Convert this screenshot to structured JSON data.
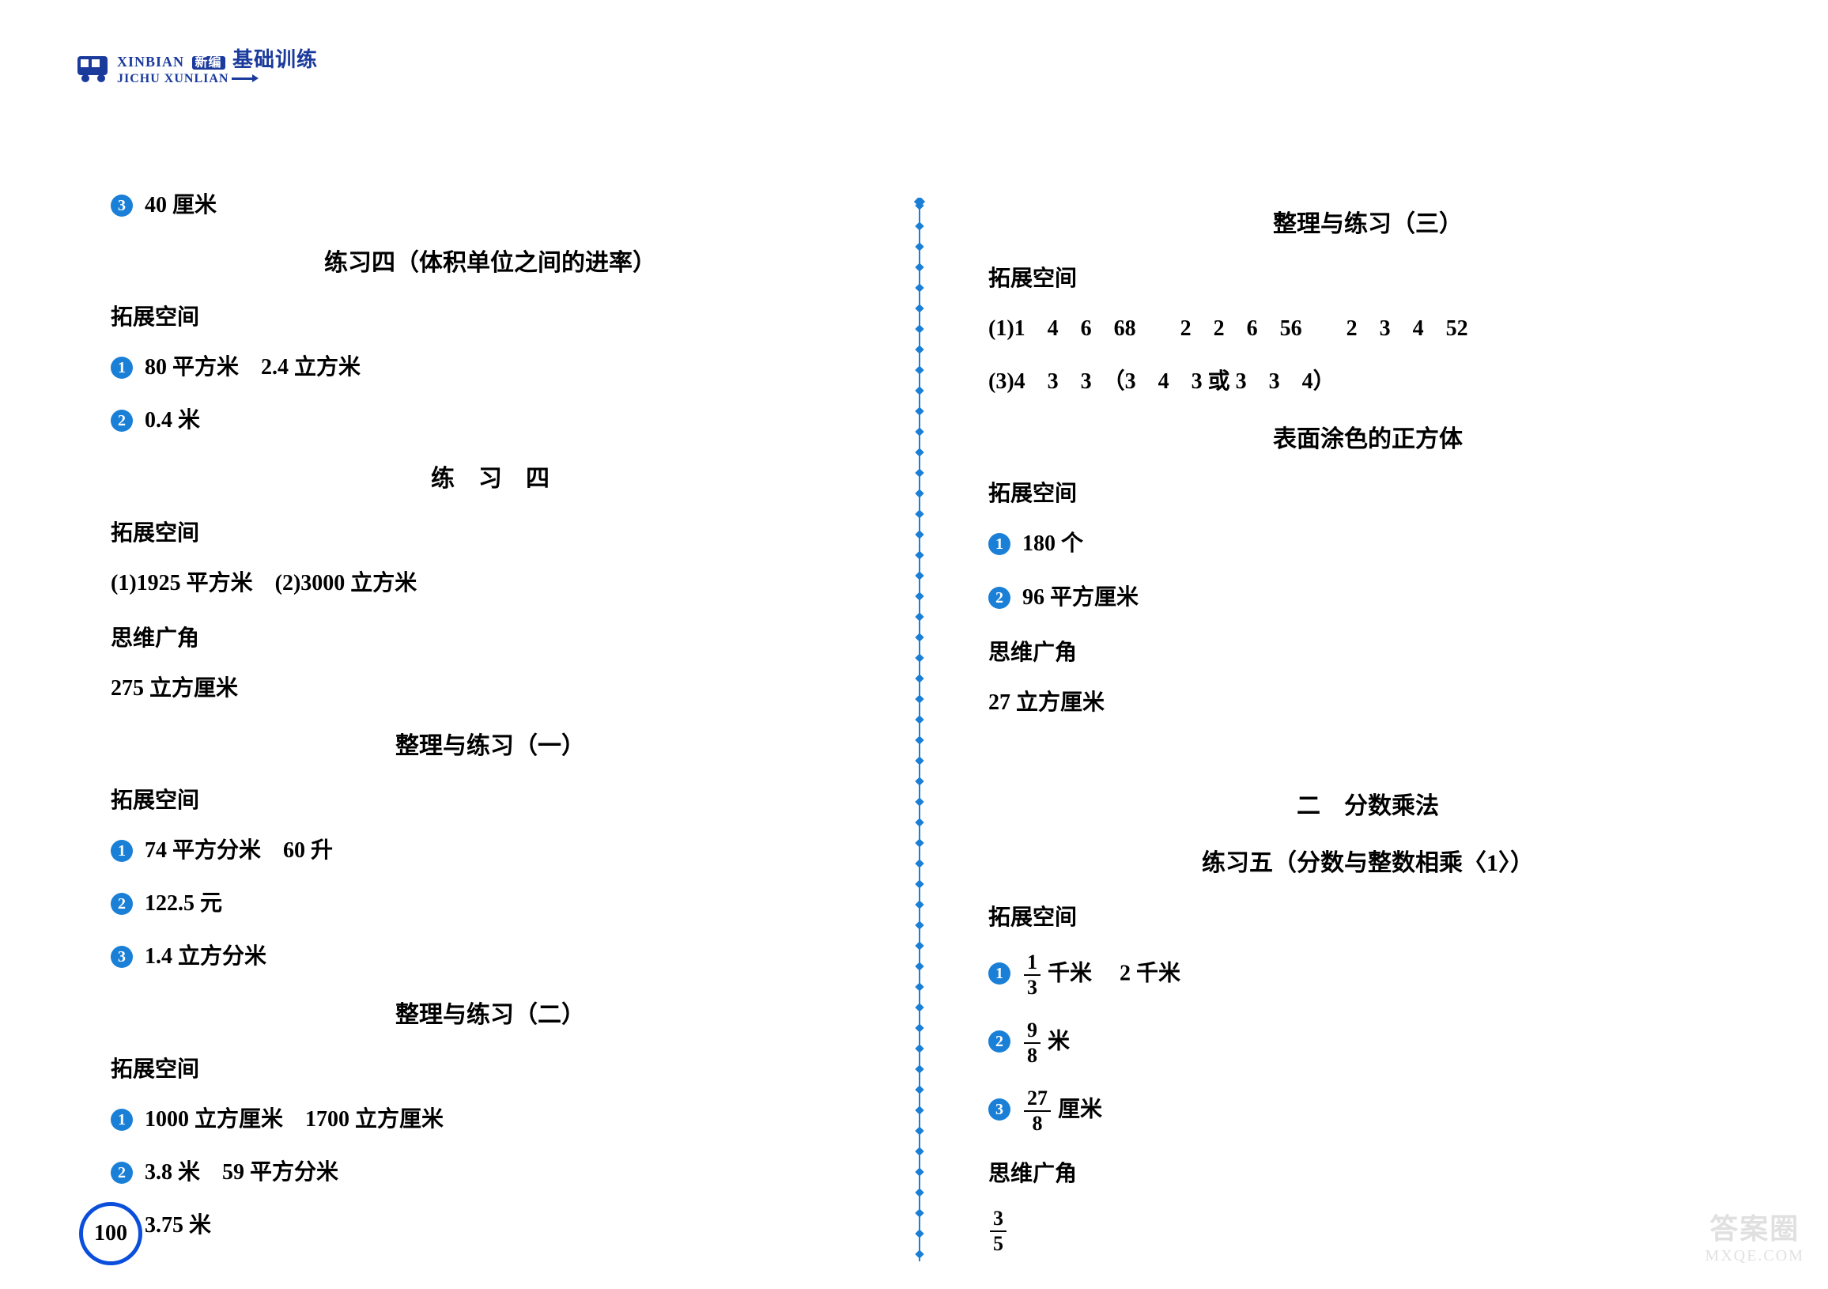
{
  "brand": {
    "pinyin_top_left": "XINBIAN",
    "badge": "新编",
    "cn": "基础训练",
    "pinyin_bot": "JICHU XUNLIAN"
  },
  "page_number": "100",
  "watermark": {
    "top": "答案圈",
    "bot": "MXQE.COM"
  },
  "divider_color": "#1a7fd6",
  "left": {
    "pre_item": {
      "n": "3",
      "text": "40 厘米"
    },
    "sec1": {
      "title": "练习四（体积单位之间的进率）",
      "sub": "拓展空间",
      "items": [
        {
          "n": "1",
          "text": "80 平方米　2.4 立方米"
        },
        {
          "n": "2",
          "text": "0.4 米"
        }
      ]
    },
    "sec2": {
      "title": "练　习　四",
      "sub1": "拓展空间",
      "line1": "(1)1925 平方米　(2)3000 立方米",
      "sub2": "思维广角",
      "line2": "275 立方厘米"
    },
    "sec3": {
      "title": "整理与练习（一）",
      "sub": "拓展空间",
      "items": [
        {
          "n": "1",
          "text": "74 平方分米　60 升"
        },
        {
          "n": "2",
          "text": "122.5 元"
        },
        {
          "n": "3",
          "text": "1.4 立方分米"
        }
      ]
    },
    "sec4": {
      "title": "整理与练习（二）",
      "sub": "拓展空间",
      "items": [
        {
          "n": "1",
          "text": "1000 立方厘米　1700 立方厘米"
        },
        {
          "n": "2",
          "text": "3.8 米　59 平方分米"
        },
        {
          "n": "3",
          "text": "3.75 米"
        }
      ]
    }
  },
  "right": {
    "sec1": {
      "title": "整理与练习（三）",
      "sub": "拓展空间",
      "line1": "(1)1　4　6　68　　2　2　6　56　　2　3　4　52",
      "line2": "(3)4　3　3　（3　4　3 或 3　3　4）"
    },
    "sec2": {
      "title": "表面涂色的正方体",
      "sub1": "拓展空间",
      "items": [
        {
          "n": "1",
          "text": "180 个"
        },
        {
          "n": "2",
          "text": "96 平方厘米"
        }
      ],
      "sub2": "思维广角",
      "line2": "27 立方厘米"
    },
    "chapter": "二　分数乘法",
    "sec3": {
      "title": "练习五（分数与整数相乘〈1〉）",
      "sub1": "拓展空间",
      "item1": {
        "n": "1",
        "frac_num": "1",
        "frac_den": "3",
        "unit": "千米",
        "tail": "　2 千米"
      },
      "item2": {
        "n": "2",
        "frac_num": "9",
        "frac_den": "8",
        "unit": "米"
      },
      "item3": {
        "n": "3",
        "frac_num": "27",
        "frac_den": "8",
        "unit": "厘米"
      },
      "sub2": "思维广角",
      "frac_alone": {
        "num": "3",
        "den": "5"
      }
    }
  }
}
